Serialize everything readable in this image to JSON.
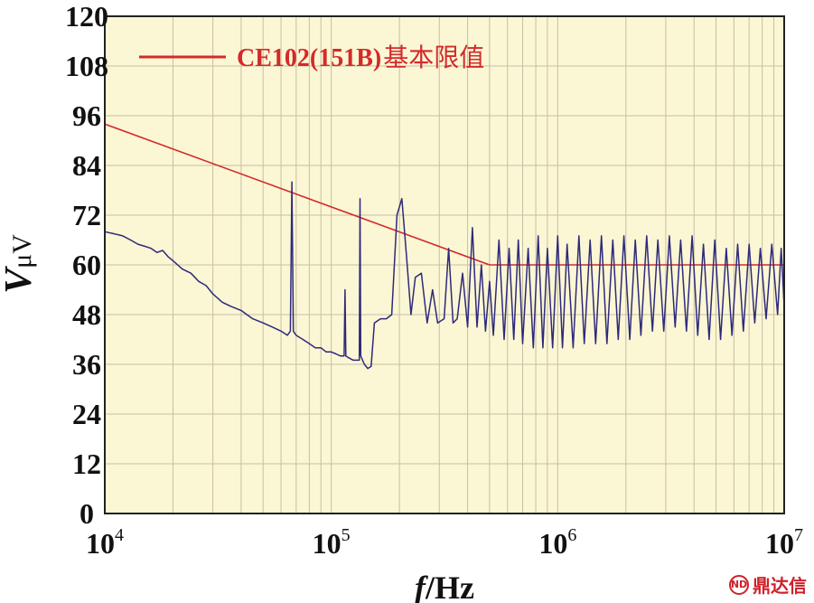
{
  "chart_data": {
    "type": "line",
    "xlabel_italic": "f",
    "xlabel_unit": "/Hz",
    "ylabel_main": "V",
    "ylabel_unit": "μV",
    "x_scale": "log",
    "xlim": [
      10000,
      10000000
    ],
    "ylim": [
      0,
      120
    ],
    "y_ticks": [
      "0",
      "12",
      "24",
      "36",
      "48",
      "60",
      "72",
      "84",
      "96",
      "108",
      "120"
    ],
    "x_ticks": [
      {
        "value": 10000,
        "base": "10",
        "exp": "4"
      },
      {
        "value": 100000,
        "base": "10",
        "exp": "5"
      },
      {
        "value": 1000000,
        "base": "10",
        "exp": "6"
      },
      {
        "value": 10000000,
        "base": "10",
        "exp": "7"
      }
    ],
    "grid": true,
    "legend_position": "top-left",
    "colors": {
      "plot_bg": "#fbf6d4",
      "limit": "#d42a2a",
      "measured": "#2e2a7a",
      "grid": "#c4c0a4"
    },
    "legend": {
      "label_latin": "CE102(151B)",
      "label_cjk": "基本限值"
    },
    "series": [
      {
        "key": "limit",
        "label": "CE102(151B)基本限值",
        "points": [
          [
            10000,
            94
          ],
          [
            500000,
            60
          ],
          [
            10000000,
            60
          ]
        ]
      },
      {
        "key": "measured",
        "points": [
          [
            10000,
            68
          ],
          [
            11000,
            67.5
          ],
          [
            12000,
            67
          ],
          [
            13000,
            66
          ],
          [
            14000,
            65
          ],
          [
            15000,
            64.5
          ],
          [
            16000,
            64
          ],
          [
            17000,
            63
          ],
          [
            18000,
            63.5
          ],
          [
            19000,
            62
          ],
          [
            20000,
            61
          ],
          [
            22000,
            59
          ],
          [
            24000,
            58
          ],
          [
            26000,
            56
          ],
          [
            28000,
            55
          ],
          [
            30000,
            53
          ],
          [
            33000,
            51
          ],
          [
            36000,
            50
          ],
          [
            40000,
            49
          ],
          [
            45000,
            47
          ],
          [
            50000,
            46
          ],
          [
            55000,
            45
          ],
          [
            60000,
            44
          ],
          [
            64000,
            43
          ],
          [
            66000,
            44
          ],
          [
            67000,
            80
          ],
          [
            68000,
            44
          ],
          [
            70000,
            43
          ],
          [
            75000,
            42
          ],
          [
            80000,
            41
          ],
          [
            85000,
            40
          ],
          [
            90000,
            40
          ],
          [
            95000,
            39
          ],
          [
            100000,
            39
          ],
          [
            105000,
            38.5
          ],
          [
            110000,
            38
          ],
          [
            114000,
            38
          ],
          [
            115000,
            54
          ],
          [
            116000,
            38
          ],
          [
            120000,
            37.5
          ],
          [
            125000,
            37
          ],
          [
            130000,
            37
          ],
          [
            133000,
            37
          ],
          [
            134000,
            76
          ],
          [
            135000,
            38
          ],
          [
            140000,
            36
          ],
          [
            145000,
            35
          ],
          [
            150000,
            35.5
          ],
          [
            155000,
            46
          ],
          [
            165000,
            47
          ],
          [
            175000,
            47
          ],
          [
            185000,
            48
          ],
          [
            195000,
            72
          ],
          [
            205000,
            76
          ],
          [
            215000,
            62
          ],
          [
            225000,
            48
          ],
          [
            235000,
            57
          ],
          [
            250000,
            58
          ],
          [
            265000,
            46
          ],
          [
            280000,
            54
          ],
          [
            295000,
            46
          ],
          [
            315000,
            47
          ],
          [
            330000,
            64
          ],
          [
            345000,
            46
          ],
          [
            360000,
            47
          ],
          [
            380000,
            58
          ],
          [
            400000,
            45
          ],
          [
            420000,
            69
          ],
          [
            440000,
            45
          ],
          [
            460000,
            60
          ],
          [
            480000,
            44
          ],
          [
            500000,
            56
          ],
          [
            520000,
            43
          ],
          [
            550000,
            66
          ],
          [
            580000,
            42
          ],
          [
            610000,
            64
          ],
          [
            640000,
            42
          ],
          [
            670000,
            66
          ],
          [
            700000,
            41
          ],
          [
            740000,
            64
          ],
          [
            780000,
            40
          ],
          [
            820000,
            67
          ],
          [
            860000,
            40
          ],
          [
            900000,
            64
          ],
          [
            950000,
            40
          ],
          [
            1000000,
            67
          ],
          [
            1050000,
            40
          ],
          [
            1100000,
            65
          ],
          [
            1170000,
            40
          ],
          [
            1240000,
            67
          ],
          [
            1310000,
            41
          ],
          [
            1390000,
            66
          ],
          [
            1470000,
            41
          ],
          [
            1560000,
            67
          ],
          [
            1650000,
            41
          ],
          [
            1750000,
            66
          ],
          [
            1850000,
            42
          ],
          [
            1960000,
            67
          ],
          [
            2080000,
            42
          ],
          [
            2200000,
            66
          ],
          [
            2330000,
            43
          ],
          [
            2470000,
            67
          ],
          [
            2620000,
            44
          ],
          [
            2770000,
            66
          ],
          [
            2940000,
            44
          ],
          [
            3110000,
            67
          ],
          [
            3300000,
            45
          ],
          [
            3490000,
            66
          ],
          [
            3700000,
            44
          ],
          [
            3920000,
            67
          ],
          [
            4150000,
            43
          ],
          [
            4400000,
            65
          ],
          [
            4660000,
            42
          ],
          [
            4940000,
            66
          ],
          [
            5240000,
            42
          ],
          [
            5550000,
            64
          ],
          [
            5880000,
            43
          ],
          [
            6230000,
            65
          ],
          [
            6600000,
            44
          ],
          [
            7000000,
            65
          ],
          [
            7410000,
            46
          ],
          [
            7850000,
            64
          ],
          [
            8320000,
            47
          ],
          [
            8820000,
            65
          ],
          [
            9350000,
            48
          ],
          [
            9700000,
            64
          ],
          [
            10000000,
            50
          ]
        ]
      }
    ]
  },
  "watermark": {
    "text": "鼎达信"
  }
}
